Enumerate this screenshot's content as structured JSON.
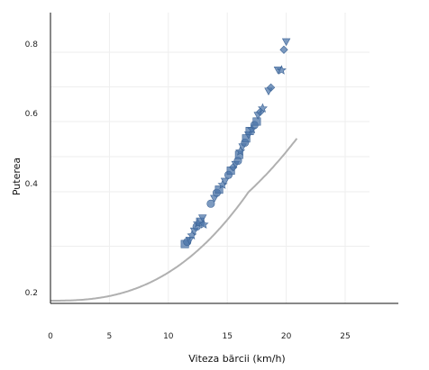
{
  "chart_data": {
    "type": "scatter",
    "title": "",
    "xlabel": "Viteza bărcii (km/h)",
    "ylabel": "Puterea",
    "xlim": [
      0,
      28
    ],
    "ylim": [
      0.2,
      0.9
    ],
    "x_ticks": [
      0,
      5,
      10,
      15,
      20,
      25
    ],
    "y_ticks": [
      0.2,
      0.4,
      0.6,
      0.8
    ],
    "grid": true,
    "fit_curve": {
      "type": "power",
      "a": 0.2,
      "b": 0.00013,
      "p": 2.6,
      "color": "#b0b0b0"
    },
    "marker_color": "#4a73a8",
    "series": [
      {
        "values": [
          {
            "x": 11.4,
            "y": 0.304,
            "m": "square"
          },
          {
            "x": 11.6,
            "y": 0.308,
            "m": "circle"
          },
          {
            "x": 11.8,
            "y": 0.311,
            "m": "triangle-down"
          },
          {
            "x": 12.0,
            "y": 0.32,
            "m": "star"
          },
          {
            "x": 12.2,
            "y": 0.328,
            "m": "triangle-down"
          },
          {
            "x": 12.4,
            "y": 0.336,
            "m": "circle"
          },
          {
            "x": 12.5,
            "y": 0.342,
            "m": "star"
          },
          {
            "x": 12.7,
            "y": 0.345,
            "m": "square"
          },
          {
            "x": 12.9,
            "y": 0.352,
            "m": "triangle-down"
          },
          {
            "x": 13.0,
            "y": 0.34,
            "m": "star"
          },
          {
            "x": 13.6,
            "y": 0.378,
            "m": "circle"
          },
          {
            "x": 13.9,
            "y": 0.388,
            "m": "triangle-down"
          },
          {
            "x": 14.1,
            "y": 0.398,
            "m": "circle"
          },
          {
            "x": 14.3,
            "y": 0.406,
            "m": "square"
          },
          {
            "x": 14.6,
            "y": 0.42,
            "m": "star"
          },
          {
            "x": 14.8,
            "y": 0.43,
            "m": "triangle-down"
          },
          {
            "x": 15.1,
            "y": 0.448,
            "m": "circle"
          },
          {
            "x": 15.3,
            "y": 0.46,
            "m": "square"
          },
          {
            "x": 15.5,
            "y": 0.47,
            "m": "diamond"
          },
          {
            "x": 15.7,
            "y": 0.478,
            "m": "triangle-down"
          },
          {
            "x": 15.9,
            "y": 0.488,
            "m": "circle"
          },
          {
            "x": 16.0,
            "y": 0.505,
            "m": "square"
          },
          {
            "x": 16.1,
            "y": 0.515,
            "m": "star"
          },
          {
            "x": 16.3,
            "y": 0.528,
            "m": "triangle-down"
          },
          {
            "x": 16.5,
            "y": 0.54,
            "m": "circle"
          },
          {
            "x": 16.6,
            "y": 0.552,
            "m": "square"
          },
          {
            "x": 16.8,
            "y": 0.562,
            "m": "triangle-down"
          },
          {
            "x": 16.9,
            "y": 0.573,
            "m": "square"
          },
          {
            "x": 17.1,
            "y": 0.578,
            "m": "star"
          },
          {
            "x": 17.3,
            "y": 0.59,
            "m": "circle"
          },
          {
            "x": 17.5,
            "y": 0.6,
            "m": "square"
          },
          {
            "x": 17.6,
            "y": 0.618,
            "m": "triangle-down"
          },
          {
            "x": 17.8,
            "y": 0.628,
            "m": "diamond"
          },
          {
            "x": 18.0,
            "y": 0.638,
            "m": "star"
          },
          {
            "x": 18.5,
            "y": 0.688,
            "m": "triangle-down"
          },
          {
            "x": 18.7,
            "y": 0.698,
            "m": "diamond"
          },
          {
            "x": 19.3,
            "y": 0.749,
            "m": "triangle-down"
          },
          {
            "x": 19.6,
            "y": 0.748,
            "m": "star"
          },
          {
            "x": 19.8,
            "y": 0.807,
            "m": "diamond"
          },
          {
            "x": 20.0,
            "y": 0.83,
            "m": "triangle-down"
          }
        ]
      }
    ]
  }
}
